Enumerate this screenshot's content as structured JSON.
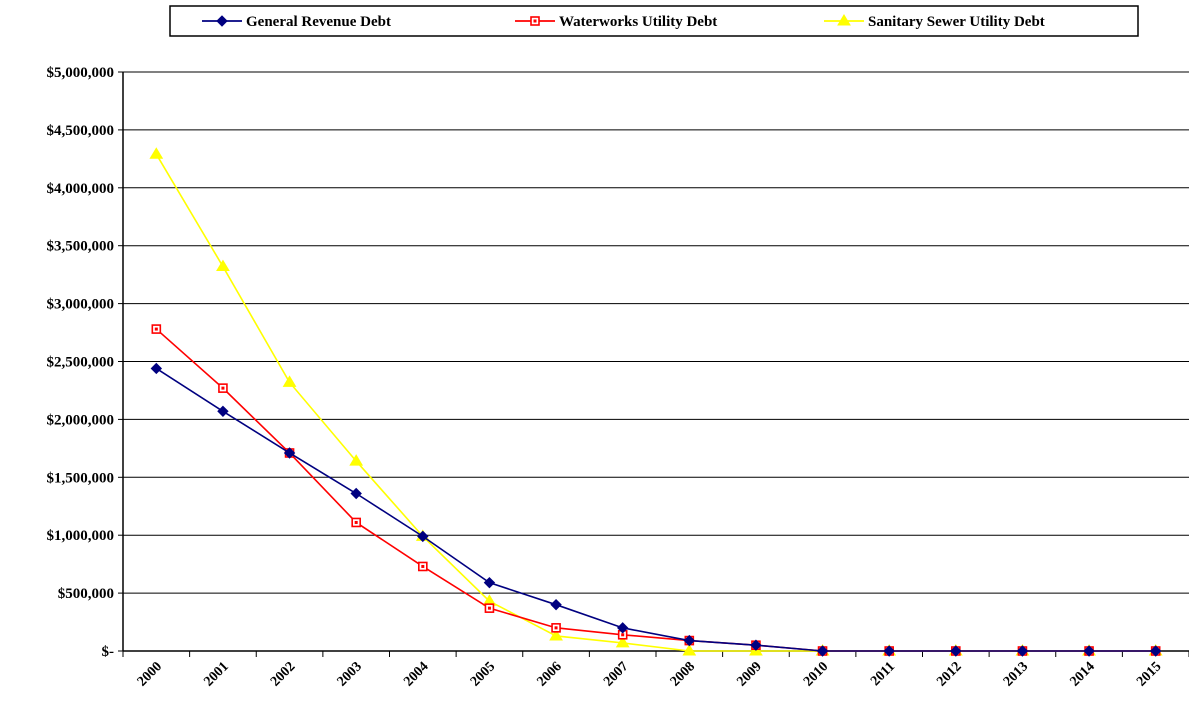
{
  "chart_data": {
    "type": "line",
    "categories": [
      "2000",
      "2001",
      "2002",
      "2003",
      "2004",
      "2005",
      "2006",
      "2007",
      "2008",
      "2009",
      "2010",
      "2011",
      "2012",
      "2013",
      "2014",
      "2015"
    ],
    "series": [
      {
        "name": "General Revenue Debt",
        "color": "#000080",
        "marker": "diamond",
        "values": [
          2440000,
          2070000,
          1710000,
          1360000,
          990000,
          590000,
          400000,
          200000,
          90000,
          50000,
          0,
          0,
          0,
          0,
          0,
          0
        ]
      },
      {
        "name": "Waterworks Utility Debt",
        "color": "#ff0000",
        "marker": "square",
        "values": [
          2780000,
          2270000,
          1710000,
          1110000,
          730000,
          370000,
          200000,
          140000,
          90000,
          50000,
          0,
          0,
          0,
          0,
          0,
          0
        ]
      },
      {
        "name": "Sanitary Sewer Utility Debt",
        "color": "#ffff00",
        "marker": "triangle",
        "values": [
          4290000,
          3320000,
          2320000,
          1640000,
          990000,
          430000,
          130000,
          70000,
          0,
          0,
          0,
          0,
          0,
          0,
          0,
          0
        ]
      }
    ],
    "y_ticks": [
      {
        "value": 0,
        "label": "$-"
      },
      {
        "value": 500000,
        "label": "$500,000"
      },
      {
        "value": 1000000,
        "label": "$1,000,000"
      },
      {
        "value": 1500000,
        "label": "$1,500,000"
      },
      {
        "value": 2000000,
        "label": "$2,000,000"
      },
      {
        "value": 2500000,
        "label": "$2,500,000"
      },
      {
        "value": 3000000,
        "label": "$3,000,000"
      },
      {
        "value": 3500000,
        "label": "$3,500,000"
      },
      {
        "value": 4000000,
        "label": "$4,000,000"
      },
      {
        "value": 4500000,
        "label": "$4,500,000"
      },
      {
        "value": 5000000,
        "label": "$5,000,000"
      }
    ],
    "ylim": [
      0,
      5000000
    ],
    "grid": true,
    "legend_position": "top",
    "title": "",
    "xlabel": "",
    "ylabel": ""
  }
}
